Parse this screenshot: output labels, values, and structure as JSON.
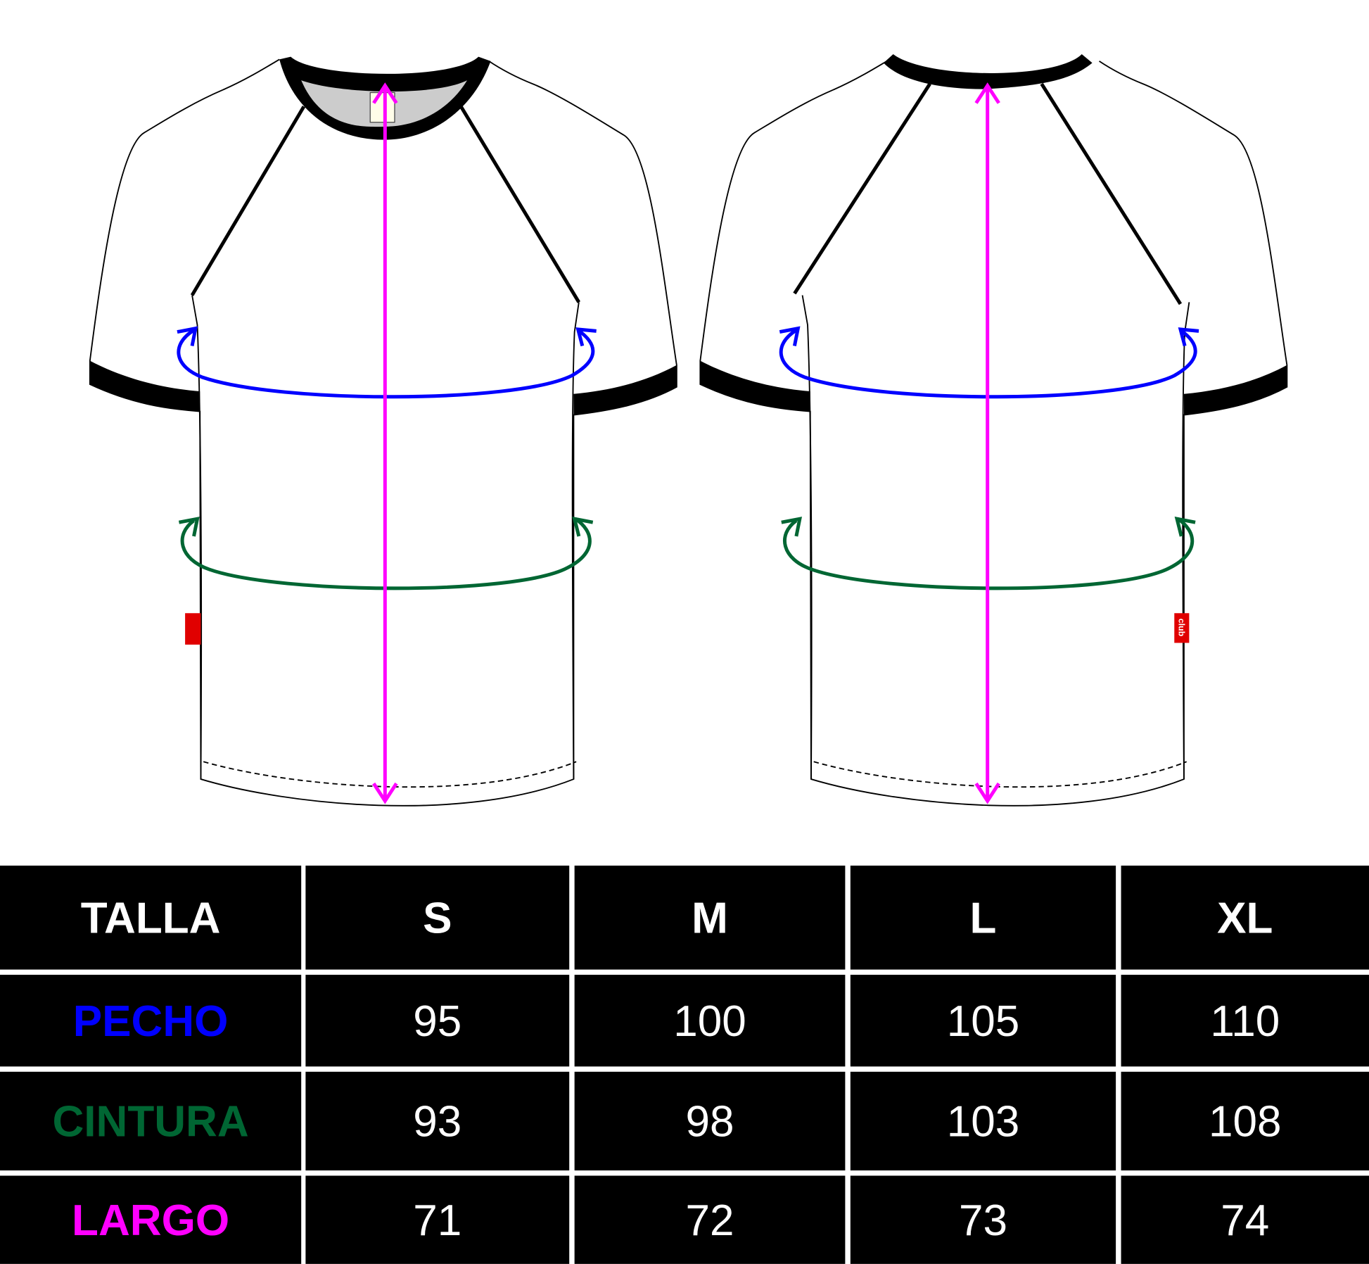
{
  "colors": {
    "pecho": "#0000ff",
    "cintura": "#006633",
    "largo": "#ff00ff",
    "tag": "#e00000"
  },
  "back_tag_text": "club",
  "table": {
    "header": [
      "TALLA",
      "S",
      "M",
      "L",
      "XL"
    ],
    "rows": [
      {
        "label": "PECHO",
        "color": "#0000ff",
        "values": [
          "95",
          "100",
          "105",
          "110"
        ]
      },
      {
        "label": "CINTURA",
        "color": "#006633",
        "values": [
          "93",
          "98",
          "103",
          "108"
        ]
      },
      {
        "label": "LARGO",
        "color": "#ff00ff",
        "values": [
          "71",
          "72",
          "73",
          "74"
        ]
      }
    ]
  }
}
